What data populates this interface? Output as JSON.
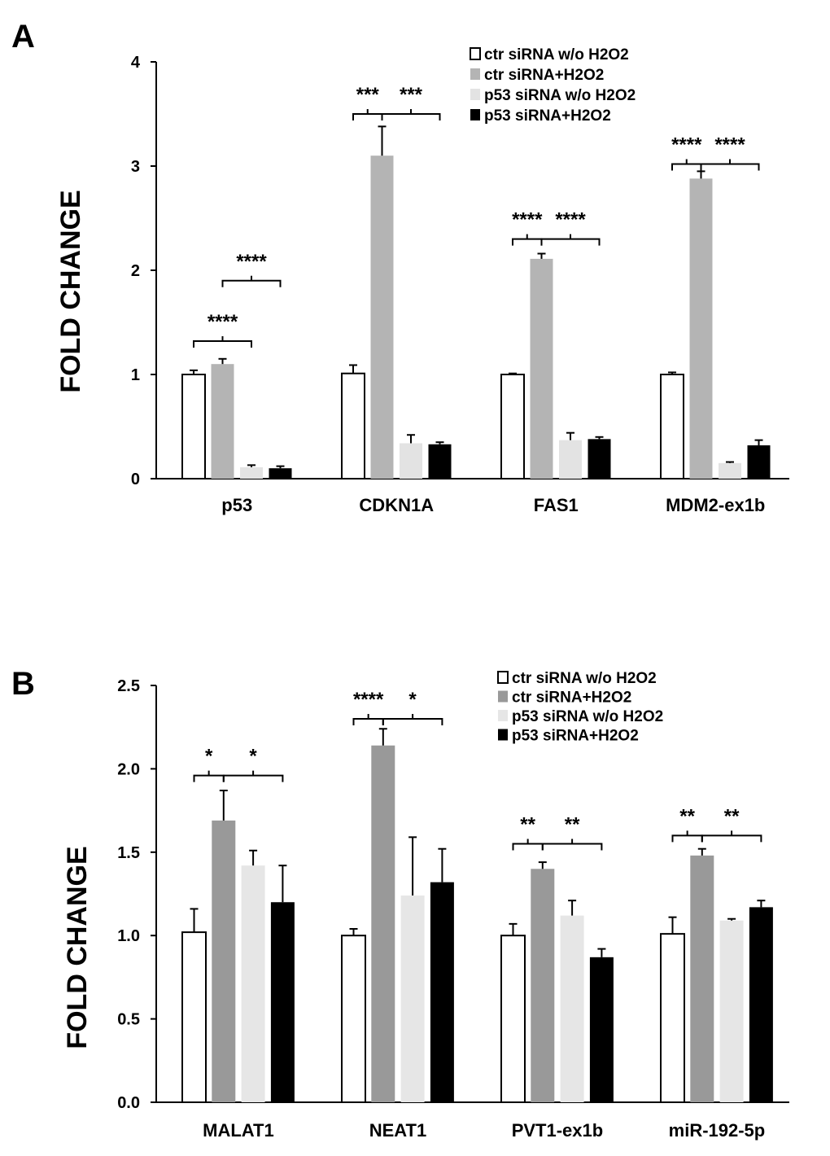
{
  "chart_data": [
    {
      "panel": "A",
      "type": "bar",
      "ylabel": "FOLD CHANGE",
      "xlabel": "",
      "ylim": [
        0,
        4
      ],
      "yticks": [
        "0",
        "1",
        "2",
        "3",
        "4"
      ],
      "categories": [
        "p53",
        "CDKN1A",
        "FAS1",
        "MDM2-ex1b"
      ],
      "series": [
        {
          "name": "ctr siRNA w/o H2O2",
          "color": "#ffffff",
          "values": [
            1.0,
            1.01,
            1.0,
            1.0
          ],
          "errors": [
            0.04,
            0.08,
            0.01,
            0.02
          ]
        },
        {
          "name": "ctr siRNA+H2O2",
          "color": "#b4b4b4",
          "values": [
            1.1,
            3.1,
            2.11,
            2.88
          ],
          "errors": [
            0.05,
            0.28,
            0.05,
            0.07
          ]
        },
        {
          "name": "p53 siRNA w/o H2O2",
          "color": "#e3e3e3",
          "values": [
            0.11,
            0.34,
            0.37,
            0.15
          ],
          "errors": [
            0.02,
            0.08,
            0.07,
            0.01
          ]
        },
        {
          "name": "p53 siRNA+H2O2",
          "color": "#000000",
          "values": [
            0.1,
            0.33,
            0.38,
            0.32
          ],
          "errors": [
            0.02,
            0.02,
            0.02,
            0.05
          ]
        }
      ],
      "annotations": [
        {
          "category": 0,
          "from": 0,
          "to": 2,
          "text": "****",
          "level": 1.32
        },
        {
          "category": 0,
          "from": 1,
          "to": 3,
          "text": "****",
          "level": 1.9
        },
        {
          "category": 1,
          "from": 0,
          "to": 1,
          "text": "***",
          "level": 3.5
        },
        {
          "category": 1,
          "from": 1,
          "to": 3,
          "text": "***",
          "level": 3.5
        },
        {
          "category": 2,
          "from": 0,
          "to": 1,
          "text": "****",
          "level": 2.3
        },
        {
          "category": 2,
          "from": 1,
          "to": 3,
          "text": "****",
          "level": 2.3
        },
        {
          "category": 3,
          "from": 0,
          "to": 1,
          "text": "****",
          "level": 3.02
        },
        {
          "category": 3,
          "from": 1,
          "to": 3,
          "text": "****",
          "level": 3.02
        }
      ]
    },
    {
      "panel": "B",
      "type": "bar",
      "ylabel": "FOLD CHANGE",
      "xlabel": "",
      "ylim": [
        0,
        2.5
      ],
      "yticks": [
        "0.0",
        "0.5",
        "1.0",
        "1.5",
        "2.0",
        "2.5"
      ],
      "categories": [
        "MALAT1",
        "NEAT1",
        "PVT1-ex1b",
        "miR-192-5p"
      ],
      "series": [
        {
          "name": "ctr siRNA w/o H2O2",
          "color": "#ffffff",
          "values": [
            1.02,
            1.0,
            1.0,
            1.01
          ],
          "errors": [
            0.14,
            0.04,
            0.07,
            0.1
          ]
        },
        {
          "name": "ctr siRNA+H2O2",
          "color": "#999999",
          "values": [
            1.69,
            2.14,
            1.4,
            1.48
          ],
          "errors": [
            0.18,
            0.1,
            0.04,
            0.04
          ]
        },
        {
          "name": "p53 siRNA w/o H2O2",
          "color": "#e6e6e6",
          "values": [
            1.42,
            1.24,
            1.12,
            1.09
          ],
          "errors": [
            0.09,
            0.35,
            0.09,
            0.01
          ]
        },
        {
          "name": "p53 siRNA+H2O2",
          "color": "#000000",
          "values": [
            1.2,
            1.32,
            0.87,
            1.17
          ],
          "errors": [
            0.22,
            0.2,
            0.05,
            0.04
          ]
        }
      ],
      "annotations": [
        {
          "category": 0,
          "from": 0,
          "to": 1,
          "text": "*",
          "level": 1.96
        },
        {
          "category": 0,
          "from": 1,
          "to": 3,
          "text": "*",
          "level": 1.96
        },
        {
          "category": 1,
          "from": 0,
          "to": 1,
          "text": "****",
          "level": 2.3
        },
        {
          "category": 1,
          "from": 1,
          "to": 3,
          "text": "*",
          "level": 2.3
        },
        {
          "category": 2,
          "from": 0,
          "to": 1,
          "text": "**",
          "level": 1.55
        },
        {
          "category": 2,
          "from": 1,
          "to": 3,
          "text": "**",
          "level": 1.55
        },
        {
          "category": 3,
          "from": 0,
          "to": 1,
          "text": "**",
          "level": 1.6
        },
        {
          "category": 3,
          "from": 1,
          "to": 3,
          "text": "**",
          "level": 1.6
        }
      ]
    }
  ]
}
